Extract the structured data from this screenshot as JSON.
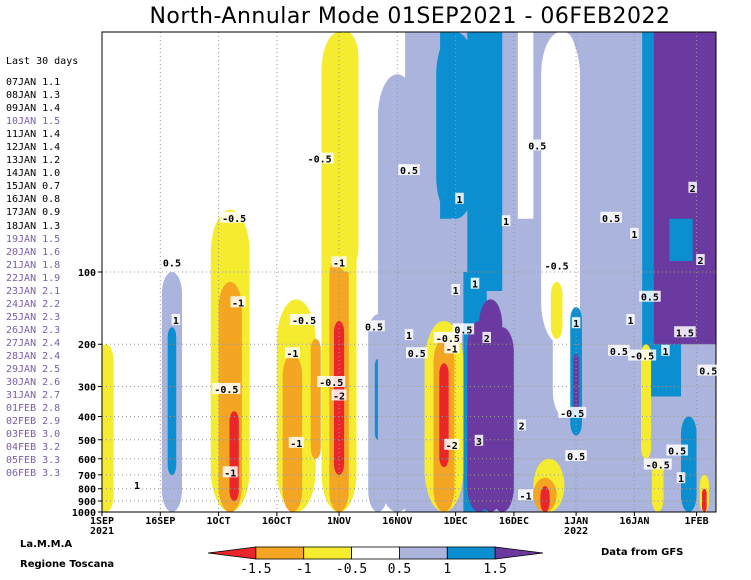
{
  "title": "North-Annular Mode 01SEP2021 - 06FEB2022",
  "side_panel": {
    "header": "Last 30 days",
    "rows": [
      {
        "date": "07JAN",
        "value": "1.1"
      },
      {
        "date": "08JAN",
        "value": "1.3"
      },
      {
        "date": "09JAN",
        "value": "1.4"
      },
      {
        "date": "10JAN",
        "value": "1.5"
      },
      {
        "date": "11JAN",
        "value": "1.4"
      },
      {
        "date": "12JAN",
        "value": "1.4"
      },
      {
        "date": "13JAN",
        "value": "1.2"
      },
      {
        "date": "14JAN",
        "value": "1.0"
      },
      {
        "date": "15JAN",
        "value": "0.7"
      },
      {
        "date": "16JAN",
        "value": "0.8"
      },
      {
        "date": "17JAN",
        "value": "0.9"
      },
      {
        "date": "18JAN",
        "value": "1.3"
      },
      {
        "date": "19JAN",
        "value": "1.5"
      },
      {
        "date": "20JAN",
        "value": "1.6"
      },
      {
        "date": "21JAN",
        "value": "1.8"
      },
      {
        "date": "22JAN",
        "value": "1.9"
      },
      {
        "date": "23JAN",
        "value": "2.1"
      },
      {
        "date": "24JAN",
        "value": "2.2"
      },
      {
        "date": "25JAN",
        "value": "2.3"
      },
      {
        "date": "26JAN",
        "value": "2.3"
      },
      {
        "date": "27JAN",
        "value": "2.4"
      },
      {
        "date": "28JAN",
        "value": "2.4"
      },
      {
        "date": "29JAN",
        "value": "2.5"
      },
      {
        "date": "30JAN",
        "value": "2.6"
      },
      {
        "date": "31JAN",
        "value": "2.7"
      },
      {
        "date": "01FEB",
        "value": "2.8"
      },
      {
        "date": "02FEB",
        "value": "2.9"
      },
      {
        "date": "03FEB",
        "value": "3.0"
      },
      {
        "date": "04FEB",
        "value": "3.2"
      },
      {
        "date": "05FEB",
        "value": "3.3"
      },
      {
        "date": "06FEB",
        "value": "3.3"
      }
    ]
  },
  "footer": {
    "org_line1": "La.M.M.A",
    "org_line2": "Regione Toscana",
    "source": "Data from GFS"
  },
  "chart_data": {
    "type": "heatmap",
    "title": "North-Annular Mode 01SEP2021 - 06FEB2022",
    "x_range": [
      "2021-09-01",
      "2022-02-06"
    ],
    "x_ticks": [
      {
        "date": "2021-09-01",
        "label": "1SEP",
        "sublabel": "2021"
      },
      {
        "date": "2021-09-16",
        "label": "16SEP",
        "sublabel": ""
      },
      {
        "date": "2021-10-01",
        "label": "1OCT",
        "sublabel": ""
      },
      {
        "date": "2021-10-16",
        "label": "16OCT",
        "sublabel": ""
      },
      {
        "date": "2021-11-01",
        "label": "1NOV",
        "sublabel": ""
      },
      {
        "date": "2021-11-16",
        "label": "16NOV",
        "sublabel": ""
      },
      {
        "date": "2021-12-01",
        "label": "1DEC",
        "sublabel": ""
      },
      {
        "date": "2021-12-16",
        "label": "16DEC",
        "sublabel": ""
      },
      {
        "date": "2022-01-01",
        "label": "1JAN",
        "sublabel": "2022"
      },
      {
        "date": "2022-01-16",
        "label": "16JAN",
        "sublabel": ""
      },
      {
        "date": "2022-02-01",
        "label": "1FEB",
        "sublabel": ""
      }
    ],
    "y_axis": {
      "scale": "log",
      "range_hPa": [
        1000,
        10
      ],
      "reversed": true
    },
    "y_ticks": [
      100,
      200,
      300,
      400,
      500,
      600,
      700,
      800,
      900,
      1000
    ],
    "grid": true,
    "color_scale": {
      "boundaries": [
        -1.5,
        -1,
        -0.5,
        0.5,
        1,
        1.5
      ],
      "colors": [
        "#e8262b",
        "#f4a623",
        "#f6ec2f",
        "#ffffff",
        "#aab4dc",
        "#0b8fd0",
        "#6a3aa1"
      ],
      "labels": [
        "-1.5",
        "-1",
        "-0.5",
        "0.5",
        "1",
        "1.5"
      ]
    },
    "contour_labels": [
      {
        "text": "-0.5",
        "date": "2021-10-05",
        "p": 60
      },
      {
        "text": "-0.5",
        "date": "2021-10-27",
        "p": 34
      },
      {
        "text": "0.5",
        "date": "2021-11-19",
        "p": 38
      },
      {
        "text": "0.5",
        "date": "2021-12-22",
        "p": 30
      },
      {
        "text": "1",
        "date": "2021-12-02",
        "p": 50
      },
      {
        "text": "1",
        "date": "2021-12-14",
        "p": 62
      },
      {
        "text": "0.5",
        "date": "2021-09-19",
        "p": 92
      },
      {
        "text": "1",
        "date": "2021-09-20",
        "p": 160
      },
      {
        "text": "-1",
        "date": "2021-10-06",
        "p": 135
      },
      {
        "text": "-0.5",
        "date": "2021-10-23",
        "p": 160
      },
      {
        "text": "-1",
        "date": "2021-11-01",
        "p": 92
      },
      {
        "text": "-1",
        "date": "2021-10-20",
        "p": 220
      },
      {
        "text": "-0.5",
        "date": "2021-10-03",
        "p": 310
      },
      {
        "text": "-0.5",
        "date": "2021-10-30",
        "p": 290
      },
      {
        "text": "-2",
        "date": "2021-11-01",
        "p": 330
      },
      {
        "text": "-1",
        "date": "2021-10-21",
        "p": 520
      },
      {
        "text": "-1",
        "date": "2021-10-04",
        "p": 690
      },
      {
        "text": "1",
        "date": "2021-09-10",
        "p": 780
      },
      {
        "text": "0.5",
        "date": "2021-11-10",
        "p": 170
      },
      {
        "text": "1",
        "date": "2021-11-19",
        "p": 185
      },
      {
        "text": "0.5",
        "date": "2021-11-21",
        "p": 220
      },
      {
        "text": "-0.5",
        "date": "2021-11-29",
        "p": 190
      },
      {
        "text": "0.5",
        "date": "2021-12-03",
        "p": 175
      },
      {
        "text": "-1",
        "date": "2021-11-30",
        "p": 210
      },
      {
        "text": "2",
        "date": "2021-12-09",
        "p": 190
      },
      {
        "text": "-2",
        "date": "2021-11-30",
        "p": 530
      },
      {
        "text": "2",
        "date": "2021-12-18",
        "p": 440
      },
      {
        "text": "3",
        "date": "2021-12-07",
        "p": 510
      },
      {
        "text": "1",
        "date": "2021-12-01",
        "p": 120
      },
      {
        "text": "1",
        "date": "2021-12-06",
        "p": 113
      },
      {
        "text": "-0.5",
        "date": "2021-12-27",
        "p": 95
      },
      {
        "text": "1",
        "date": "2022-01-01",
        "p": 165
      },
      {
        "text": "0.5",
        "date": "2022-01-10",
        "p": 60
      },
      {
        "text": "1",
        "date": "2022-01-16",
        "p": 70
      },
      {
        "text": "0.5",
        "date": "2022-01-20",
        "p": 128
      },
      {
        "text": "1",
        "date": "2022-01-15",
        "p": 160
      },
      {
        "text": "0.5",
        "date": "2022-01-12",
        "p": 215
      },
      {
        "text": "-0.5",
        "date": "2022-01-18",
        "p": 225
      },
      {
        "text": "1",
        "date": "2022-01-24",
        "p": 215
      },
      {
        "text": "1.5",
        "date": "2022-01-29",
        "p": 180
      },
      {
        "text": "2",
        "date": "2022-01-31",
        "p": 45
      },
      {
        "text": "2",
        "date": "2022-02-02",
        "p": 90
      },
      {
        "text": "0.5",
        "date": "2022-02-04",
        "p": 260
      },
      {
        "text": "-0.5",
        "date": "2021-12-31",
        "p": 390
      },
      {
        "text": "0.5",
        "date": "2022-01-01",
        "p": 590
      },
      {
        "text": "-1",
        "date": "2021-12-19",
        "p": 860
      },
      {
        "text": "-0.5",
        "date": "2022-01-22",
        "p": 640
      },
      {
        "text": "0.5",
        "date": "2022-01-27",
        "p": 560
      },
      {
        "text": "1",
        "date": "2022-01-28",
        "p": 730
      }
    ]
  }
}
